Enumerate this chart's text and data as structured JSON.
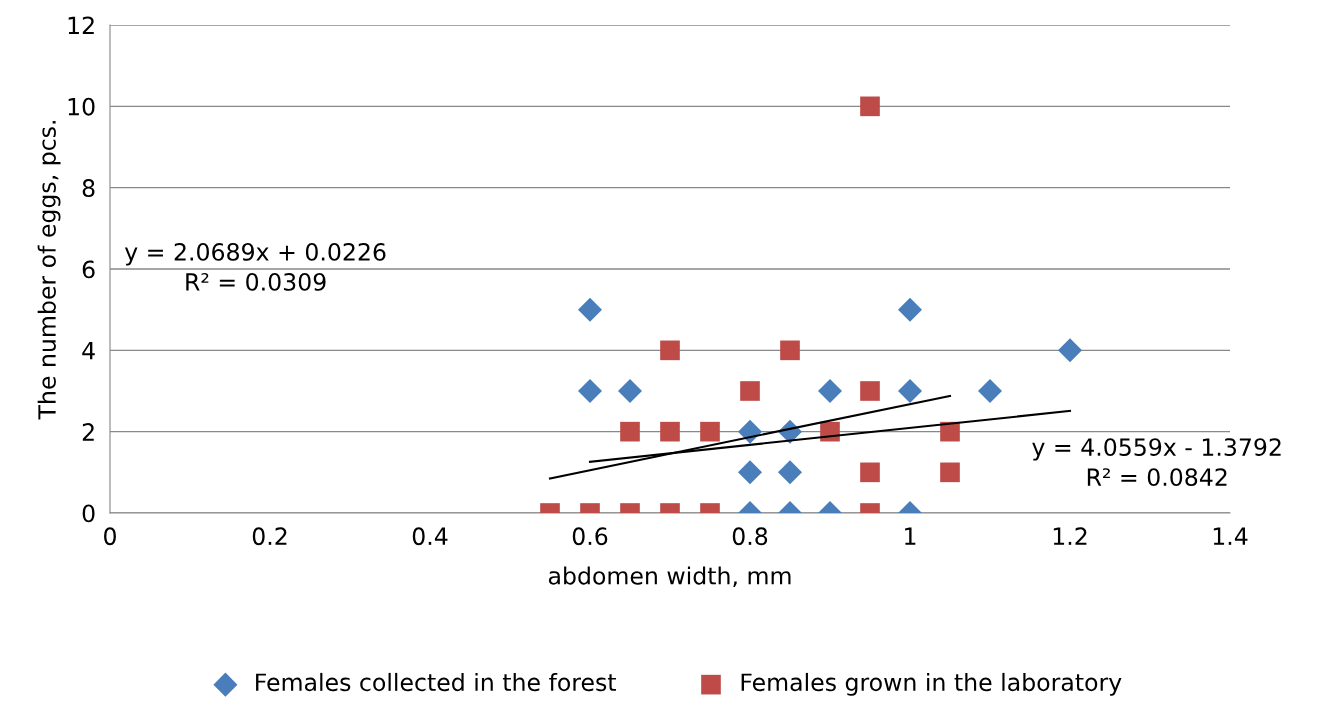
{
  "chart_data": {
    "type": "scatter",
    "xlabel": "abdomen width, mm",
    "ylabel": "The number of eggs, pcs.",
    "xlim": [
      0,
      1.4
    ],
    "xticks": [
      0,
      0.2,
      0.4,
      0.6,
      0.8,
      1,
      1.2,
      1.4
    ],
    "ylim": [
      0,
      12
    ],
    "yticks": [
      0,
      2,
      4,
      6,
      8,
      10,
      12
    ],
    "grid": "y",
    "legend": "bottom",
    "series": [
      {
        "name": "Females collected in the forest",
        "color": "#4a7ebb",
        "marker": "diamond",
        "x": [
          0.6,
          0.6,
          0.65,
          0.8,
          0.8,
          0.8,
          0.85,
          0.85,
          0.85,
          0.9,
          0.9,
          1.0,
          1.0,
          1.0,
          1.1,
          1.2
        ],
        "values": [
          5,
          3,
          3,
          2,
          1,
          0,
          2,
          1,
          0,
          3,
          0,
          5,
          3,
          0,
          3,
          4
        ]
      },
      {
        "name": "Females grown in the laboratory",
        "color": "#be4b48",
        "marker": "square",
        "x": [
          0.55,
          0.6,
          0.65,
          0.65,
          0.7,
          0.7,
          0.7,
          0.75,
          0.75,
          0.8,
          0.85,
          0.9,
          0.95,
          0.95,
          0.95,
          0.95,
          1.05,
          1.05
        ],
        "values": [
          0,
          0,
          0,
          2,
          0,
          2,
          4,
          0,
          2,
          3,
          4,
          2,
          10,
          3,
          1,
          0,
          2,
          1
        ]
      },
      {
        "type": "line",
        "color": "#000000",
        "x": [
          0.6,
          1.2
        ],
        "values": [
          1.26,
          2.51
        ]
      },
      {
        "type": "line",
        "color": "#000000",
        "x": [
          0.55,
          1.05
        ],
        "values": [
          0.85,
          2.88
        ]
      }
    ],
    "annotations": [
      "y = 2.0689x + 0.0226\nR² = 0.0309",
      "y = 4.0559x - 1.3792\nR² = 0.0842"
    ]
  }
}
